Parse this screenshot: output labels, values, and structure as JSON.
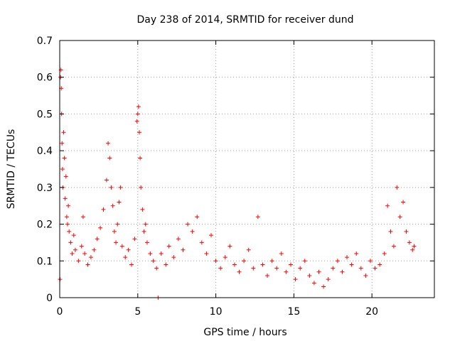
{
  "chart_data": {
    "type": "scatter",
    "title": "Day 238 of 2014, SRMTID for receiver dund",
    "xlabel": "GPS time / hours",
    "ylabel": "SRMTID / TECUs",
    "xlim": [
      0,
      24
    ],
    "ylim": [
      0,
      0.7
    ],
    "grid": true,
    "marker": "+",
    "marker_color": "#ff0000",
    "x_ticks": [
      0,
      5,
      10,
      15,
      20
    ],
    "x_tick_labels": [
      "0",
      "5",
      "10",
      "15",
      "20"
    ],
    "y_ticks": [
      0,
      0.1,
      0.2,
      0.3,
      0.4,
      0.5,
      0.6,
      0.7
    ],
    "y_tick_labels": [
      "0",
      "0.1",
      "0.2",
      "0.3",
      "0.4",
      "0.5",
      "0.6",
      "0.7"
    ],
    "series": [
      {
        "name": "SRMTID",
        "points": [
          [
            0.02,
            0.05
          ],
          [
            0.05,
            0.6
          ],
          [
            0.08,
            0.62
          ],
          [
            0.1,
            0.57
          ],
          [
            0.12,
            0.5
          ],
          [
            0.15,
            0.42
          ],
          [
            0.18,
            0.35
          ],
          [
            0.2,
            0.3
          ],
          [
            0.25,
            0.45
          ],
          [
            0.3,
            0.38
          ],
          [
            0.35,
            0.27
          ],
          [
            0.4,
            0.33
          ],
          [
            0.45,
            0.22
          ],
          [
            0.5,
            0.2
          ],
          [
            0.55,
            0.25
          ],
          [
            0.6,
            0.18
          ],
          [
            0.7,
            0.15
          ],
          [
            0.8,
            0.12
          ],
          [
            0.9,
            0.17
          ],
          [
            1.0,
            0.13
          ],
          [
            1.2,
            0.1
          ],
          [
            1.4,
            0.14
          ],
          [
            1.5,
            0.22
          ],
          [
            1.6,
            0.12
          ],
          [
            1.8,
            0.09
          ],
          [
            2.0,
            0.11
          ],
          [
            2.2,
            0.13
          ],
          [
            2.4,
            0.16
          ],
          [
            2.6,
            0.19
          ],
          [
            2.8,
            0.24
          ],
          [
            3.0,
            0.32
          ],
          [
            3.1,
            0.42
          ],
          [
            3.2,
            0.38
          ],
          [
            3.3,
            0.3
          ],
          [
            3.4,
            0.25
          ],
          [
            3.5,
            0.18
          ],
          [
            3.6,
            0.15
          ],
          [
            3.7,
            0.2
          ],
          [
            3.8,
            0.26
          ],
          [
            3.9,
            0.3
          ],
          [
            4.0,
            0.14
          ],
          [
            4.2,
            0.11
          ],
          [
            4.4,
            0.13
          ],
          [
            4.6,
            0.09
          ],
          [
            4.8,
            0.16
          ],
          [
            4.95,
            0.48
          ],
          [
            5.0,
            0.5
          ],
          [
            5.05,
            0.52
          ],
          [
            5.1,
            0.45
          ],
          [
            5.15,
            0.38
          ],
          [
            5.2,
            0.3
          ],
          [
            5.3,
            0.24
          ],
          [
            5.4,
            0.18
          ],
          [
            5.5,
            0.2
          ],
          [
            5.6,
            0.15
          ],
          [
            5.8,
            0.12
          ],
          [
            6.0,
            0.1
          ],
          [
            6.2,
            0.08
          ],
          [
            6.3,
            0.0
          ],
          [
            6.5,
            0.12
          ],
          [
            6.8,
            0.09
          ],
          [
            7.0,
            0.14
          ],
          [
            7.3,
            0.11
          ],
          [
            7.6,
            0.16
          ],
          [
            7.9,
            0.13
          ],
          [
            8.2,
            0.2
          ],
          [
            8.5,
            0.18
          ],
          [
            8.8,
            0.22
          ],
          [
            9.1,
            0.15
          ],
          [
            9.4,
            0.12
          ],
          [
            9.7,
            0.17
          ],
          [
            10.0,
            0.1
          ],
          [
            10.3,
            0.08
          ],
          [
            10.6,
            0.11
          ],
          [
            10.9,
            0.14
          ],
          [
            11.2,
            0.09
          ],
          [
            11.5,
            0.07
          ],
          [
            11.8,
            0.1
          ],
          [
            12.1,
            0.13
          ],
          [
            12.4,
            0.08
          ],
          [
            12.7,
            0.22
          ],
          [
            13.0,
            0.09
          ],
          [
            13.3,
            0.06
          ],
          [
            13.6,
            0.1
          ],
          [
            13.9,
            0.08
          ],
          [
            14.2,
            0.12
          ],
          [
            14.5,
            0.07
          ],
          [
            14.8,
            0.09
          ],
          [
            15.1,
            0.05
          ],
          [
            15.4,
            0.08
          ],
          [
            15.7,
            0.1
          ],
          [
            16.0,
            0.06
          ],
          [
            16.3,
            0.04
          ],
          [
            16.6,
            0.07
          ],
          [
            16.9,
            0.03
          ],
          [
            17.2,
            0.05
          ],
          [
            17.5,
            0.08
          ],
          [
            17.8,
            0.1
          ],
          [
            18.1,
            0.07
          ],
          [
            18.4,
            0.11
          ],
          [
            18.7,
            0.09
          ],
          [
            19.0,
            0.12
          ],
          [
            19.3,
            0.08
          ],
          [
            19.6,
            0.06
          ],
          [
            19.9,
            0.1
          ],
          [
            20.2,
            0.08
          ],
          [
            20.5,
            0.09
          ],
          [
            20.8,
            0.12
          ],
          [
            21.0,
            0.25
          ],
          [
            21.2,
            0.18
          ],
          [
            21.4,
            0.14
          ],
          [
            21.6,
            0.3
          ],
          [
            21.8,
            0.22
          ],
          [
            22.0,
            0.26
          ],
          [
            22.2,
            0.18
          ],
          [
            22.4,
            0.15
          ],
          [
            22.6,
            0.13
          ],
          [
            22.7,
            0.14
          ]
        ]
      }
    ]
  }
}
